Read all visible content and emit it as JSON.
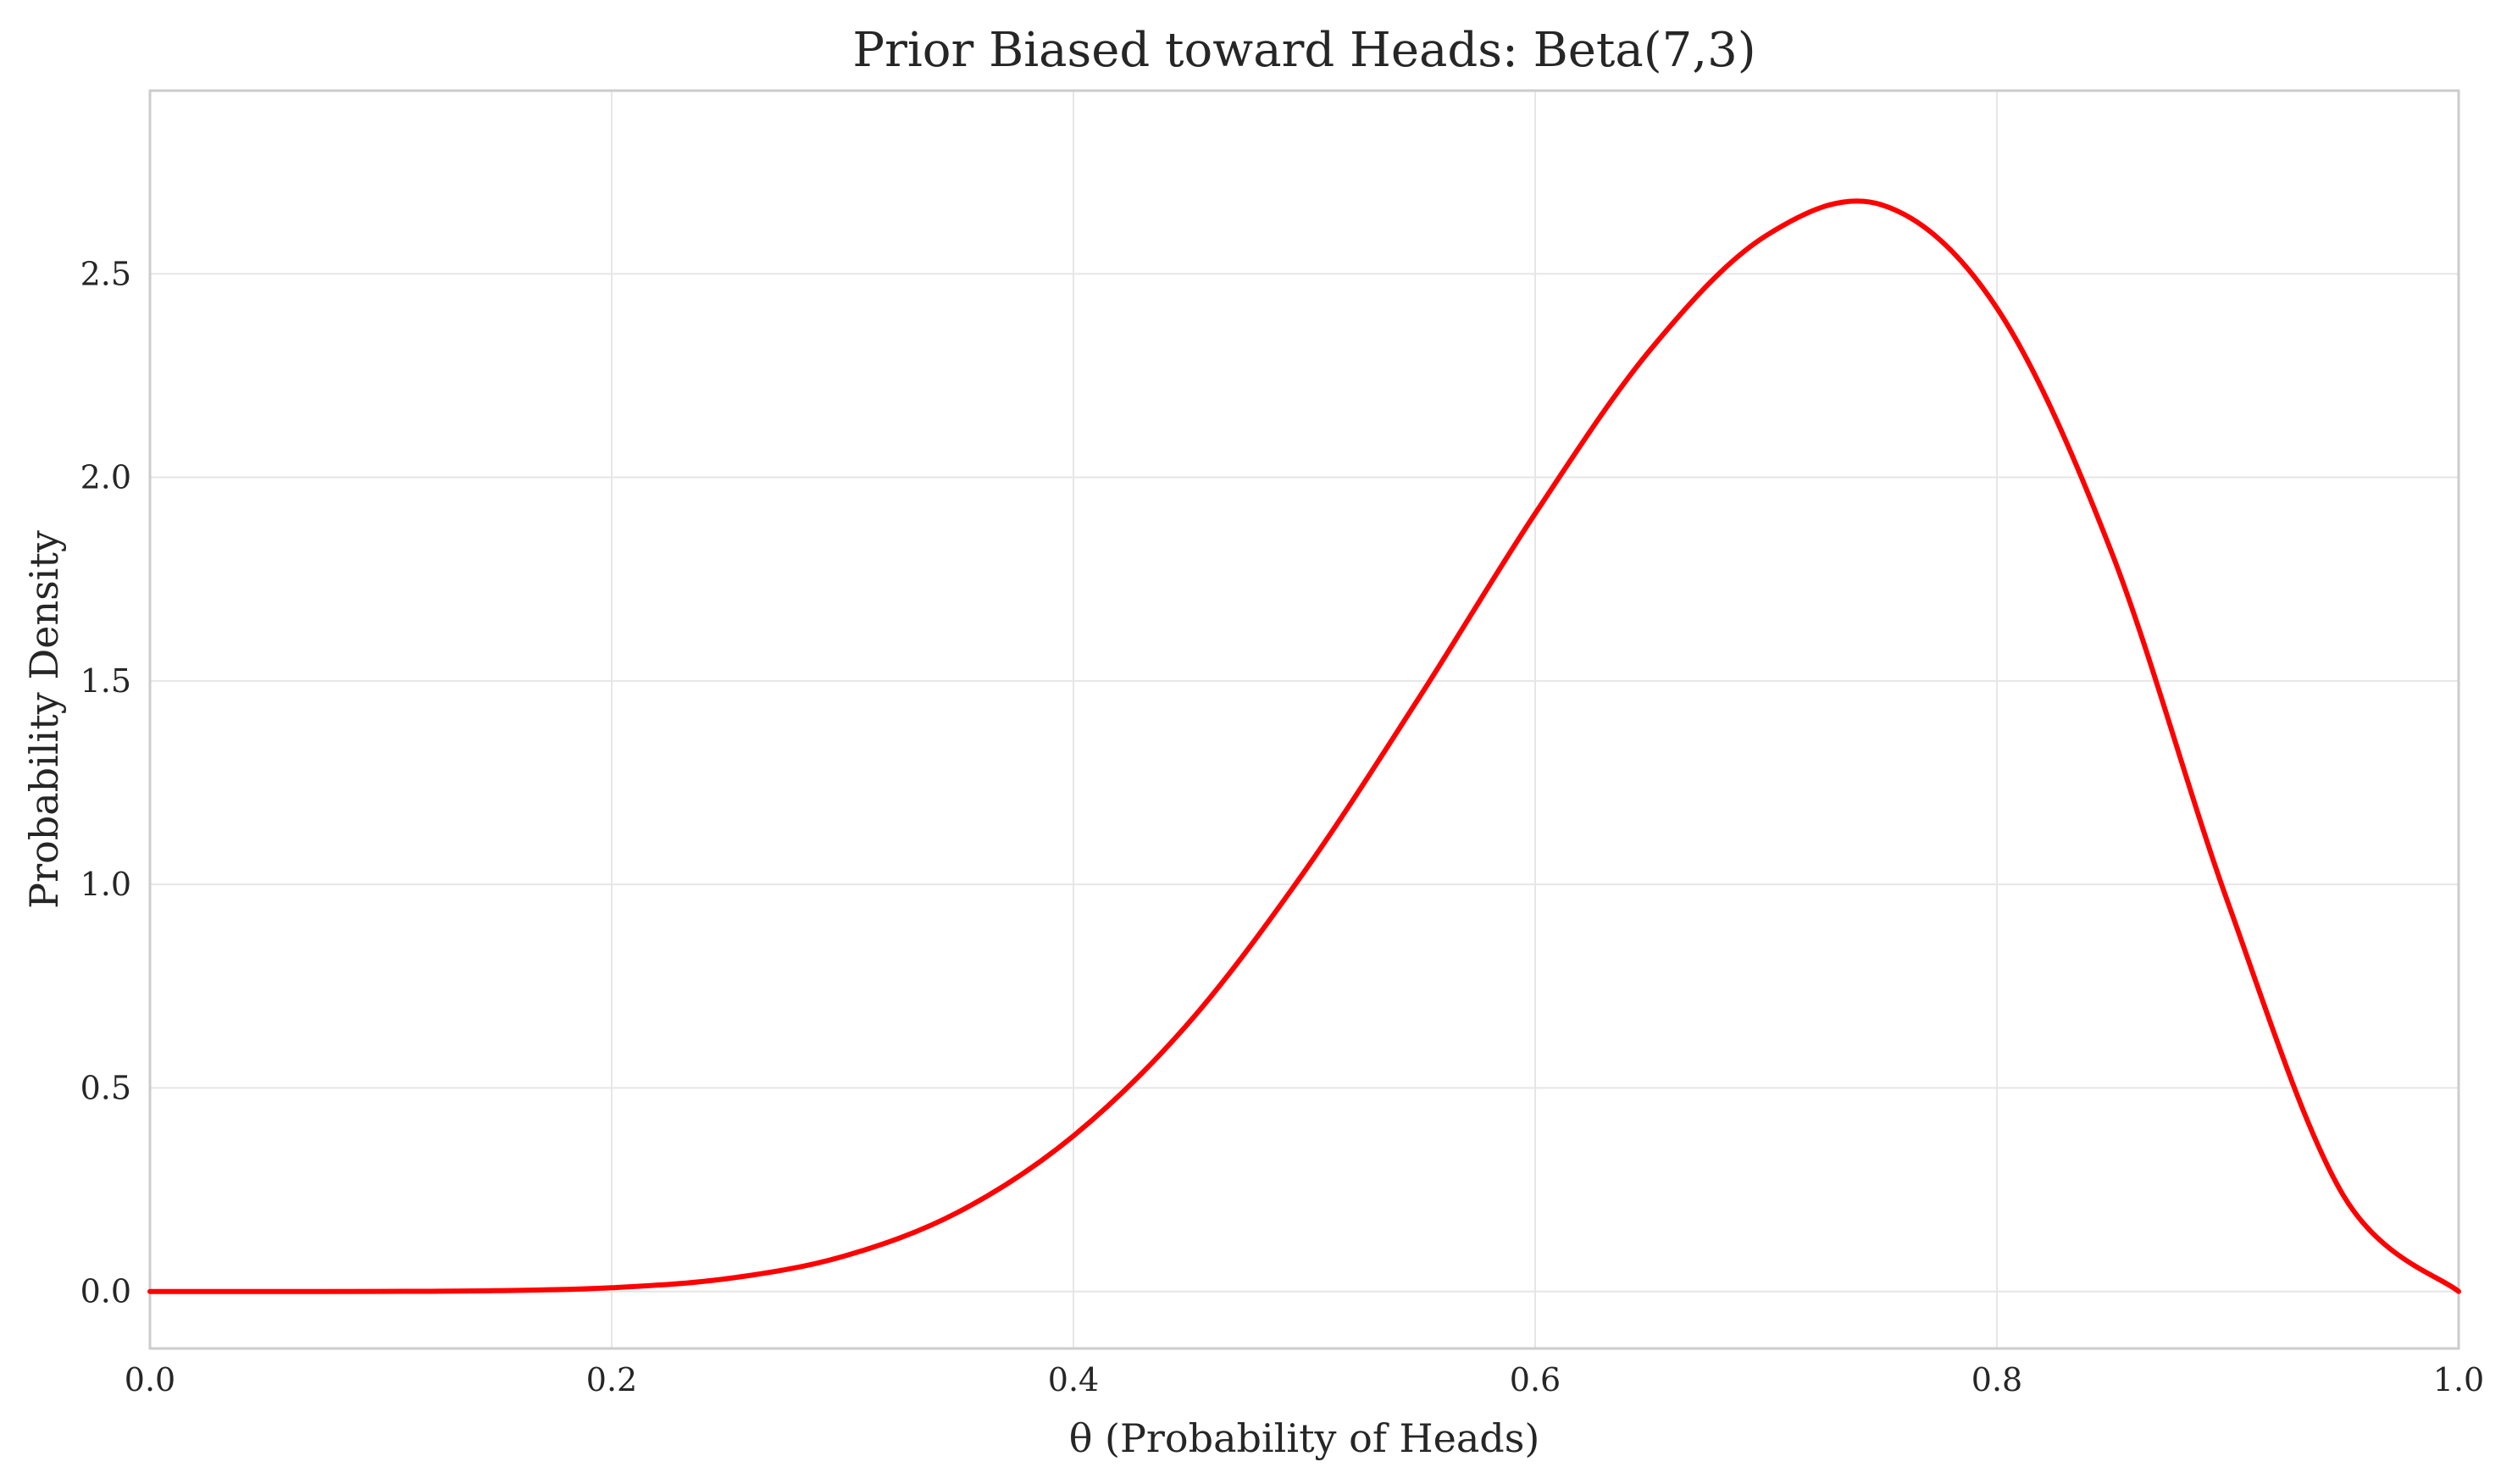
{
  "chart_data": {
    "type": "line",
    "title": "Prior Biased toward Heads: Beta(7,3)",
    "xlabel": "θ (Probability of Heads)",
    "ylabel": "Probability Density",
    "xlim": [
      0.0,
      1.0
    ],
    "ylim": [
      -0.14,
      2.95
    ],
    "grid": true,
    "x_ticks": [
      0.0,
      0.2,
      0.4,
      0.6,
      0.8,
      1.0
    ],
    "x_tick_labels": [
      "0.0",
      "0.2",
      "0.4",
      "0.6",
      "0.8",
      "1.0"
    ],
    "y_ticks": [
      0.0,
      0.5,
      1.0,
      1.5,
      2.0,
      2.5
    ],
    "y_tick_labels": [
      "0.0",
      "0.5",
      "1.0",
      "1.5",
      "2.0",
      "2.5"
    ],
    "series": [
      {
        "color": "#ff0000",
        "x": [
          0.0,
          0.05,
          0.1,
          0.15,
          0.2,
          0.25,
          0.3,
          0.35,
          0.4,
          0.45,
          0.5,
          0.55,
          0.6,
          0.65,
          0.7,
          0.75,
          0.8,
          0.85,
          0.9,
          0.95,
          1.0
        ],
        "y": [
          0.0,
          0.0,
          0.0002,
          0.0019,
          0.0092,
          0.0316,
          0.0858,
          0.1947,
          0.3822,
          0.6603,
          1.0313,
          1.4612,
          1.911,
          2.3142,
          2.5937,
          2.6697,
          2.4159,
          1.8111,
          0.9566,
          0.2366,
          0.0
        ]
      }
    ]
  }
}
